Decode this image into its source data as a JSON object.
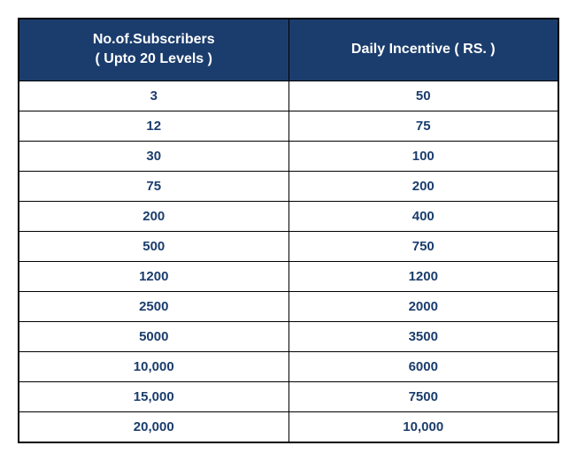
{
  "table": {
    "type": "table",
    "header_bg": "#1b3d6d",
    "header_fg": "#ffffff",
    "cell_fg": "#1b3d6d",
    "cell_bg": "#ffffff",
    "border_color": "#000000",
    "header_fontsize": 16,
    "cell_fontsize": 15,
    "font_weight": 700,
    "columns": [
      {
        "label_line1": "No.of.Subscribers",
        "label_line2": "( Upto 20 Levels )",
        "width_pct": 50,
        "align": "center"
      },
      {
        "label_line1": "Daily Incentive ( RS. )",
        "label_line2": "",
        "width_pct": 50,
        "align": "center"
      }
    ],
    "rows": [
      [
        "3",
        "50"
      ],
      [
        "12",
        "75"
      ],
      [
        "30",
        "100"
      ],
      [
        "75",
        "200"
      ],
      [
        "200",
        "400"
      ],
      [
        "500",
        "750"
      ],
      [
        "1200",
        "1200"
      ],
      [
        "2500",
        "2000"
      ],
      [
        "5000",
        "3500"
      ],
      [
        "10,000",
        "6000"
      ],
      [
        "15,000",
        "7500"
      ],
      [
        "20,000",
        "10,000"
      ]
    ]
  }
}
